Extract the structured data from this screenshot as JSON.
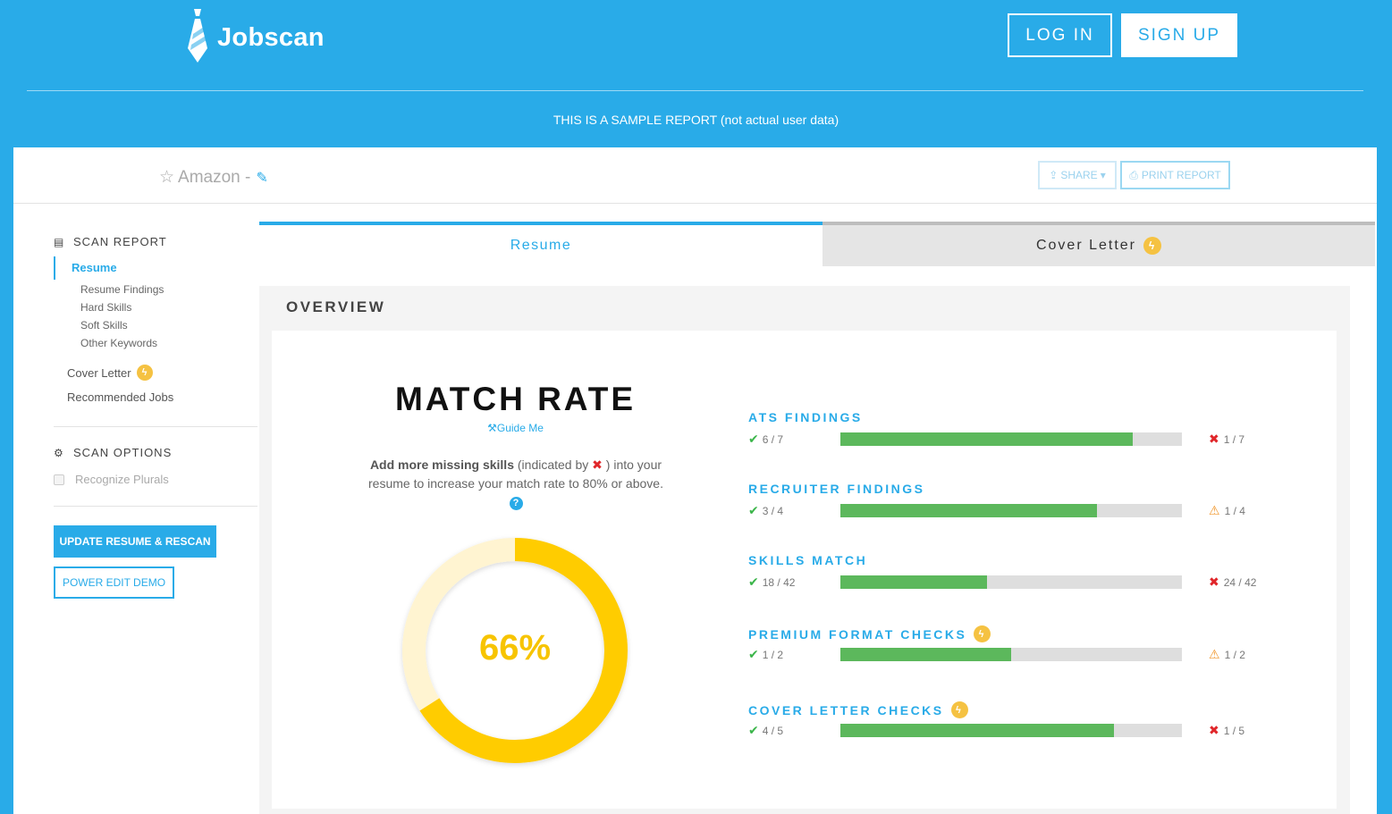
{
  "header": {
    "brand": "Jobscan",
    "login_label": "LOG IN",
    "signup_label": "SIGN UP",
    "notice": "THIS IS A SAMPLE REPORT (not actual user data)"
  },
  "title_bar": {
    "job_title": "Amazon -",
    "share_label": "SHARE",
    "print_label": "PRINT REPORT"
  },
  "sidebar": {
    "scan_report_heading": "SCAN REPORT",
    "resume_label": "Resume",
    "sub_items": [
      "Resume Findings",
      "Hard Skills",
      "Soft Skills",
      "Other Keywords"
    ],
    "cover_letter_label": "Cover Letter",
    "recommended_jobs_label": "Recommended Jobs",
    "scan_options_heading": "SCAN OPTIONS",
    "recognize_plurals_label": "Recognize Plurals",
    "recognize_plurals_checked": false,
    "update_button_label": "UPDATE RESUME & RESCAN",
    "power_edit_label": "POWER EDIT DEMO"
  },
  "tabs": {
    "resume_label": "Resume",
    "cover_letter_label": "Cover Letter",
    "active": "Resume"
  },
  "overview": {
    "title": "OVERVIEW",
    "match_rate_title": "MATCH RATE",
    "guide_label": "Guide Me",
    "desc_bold": "Add more missing skills",
    "desc_part1": " (indicated by ",
    "desc_part2": " ) into your resume to increase your match rate to 80% or above.",
    "match_rate_value": 66,
    "match_rate_text": "66%"
  },
  "findings": [
    {
      "label": "ATS FINDINGS",
      "ok": "6 / 7",
      "bad": "1 / 7",
      "bad_icon": "red-x-icon",
      "fill": 0.857,
      "premium": false
    },
    {
      "label": "RECRUITER FINDINGS",
      "ok": "3 / 4",
      "bad": "1 / 4",
      "bad_icon": "warning-icon",
      "fill": 0.75,
      "premium": false
    },
    {
      "label": "SKILLS MATCH",
      "ok": "18 / 42",
      "bad": "24 / 42",
      "bad_icon": "red-x-icon",
      "fill": 0.429,
      "premium": false
    },
    {
      "label": "PREMIUM FORMAT CHECKS",
      "ok": "1 / 2",
      "bad": "1 / 2",
      "bad_icon": "warning-icon",
      "fill": 0.5,
      "premium": true
    },
    {
      "label": "COVER LETTER CHECKS",
      "ok": "4 / 5",
      "bad": "1 / 5",
      "bad_icon": "red-x-icon",
      "fill": 0.8,
      "premium": true
    }
  ],
  "colors": {
    "brand_blue": "#29abe8",
    "gauge_yellow": "#ffcc00",
    "gauge_track": "#fff4d1",
    "bar_green": "#5cb85c",
    "ok_green": "#3bb54a",
    "error_red": "#e0262a",
    "warning_orange": "#f0962b"
  }
}
